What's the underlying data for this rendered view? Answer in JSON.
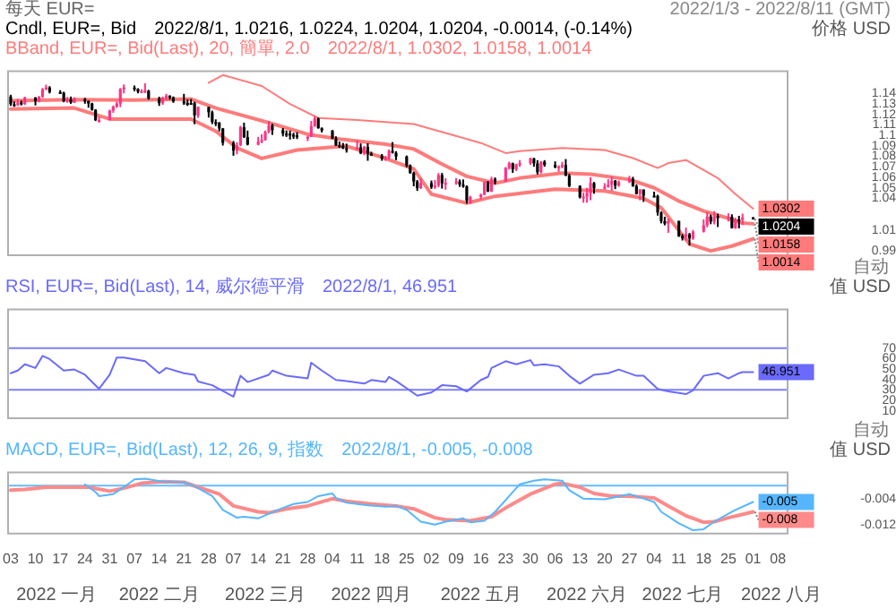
{
  "chart_data": [
    {
      "type": "candlestick",
      "title": "每天 EUR=",
      "subtitle": "2022/1/3 - 2022/8/11 (GMT)",
      "ylabel": "价格 USD",
      "annotations": [
        "Cndl, EUR=, Bid",
        "2022/8/1, 1.0216, 1.0224, 1.0204, 1.0204, -0.0014, (-0.14%)",
        "BBand, EUR=, Bid(Last), 20, 簡單, 2.0",
        "2022/8/1, 1.0302, 1.0158, 1.0014",
        "自动",
        {
          "text": "1.0302",
          "x": "2022-08-01",
          "y": 1.0302
        },
        {
          "text": "1.0204",
          "x": "2022-08-01",
          "y": 1.0204
        },
        {
          "text": "1.0158",
          "x": "2022-08-01",
          "y": 1.0158
        },
        {
          "text": "1.0014",
          "x": "2022-08-01",
          "y": 1.0014
        }
      ],
      "x": [
        "2022-01-03",
        "2022-01-04",
        "2022-01-05",
        "2022-01-06",
        "2022-01-07",
        "2022-01-10",
        "2022-01-11",
        "2022-01-12",
        "2022-01-13",
        "2022-01-14",
        "2022-01-17",
        "2022-01-18",
        "2022-01-19",
        "2022-01-20",
        "2022-01-21",
        "2022-01-24",
        "2022-01-25",
        "2022-01-26",
        "2022-01-27",
        "2022-01-28",
        "2022-01-31",
        "2022-02-01",
        "2022-02-02",
        "2022-02-03",
        "2022-02-04",
        "2022-02-07",
        "2022-02-08",
        "2022-02-09",
        "2022-02-10",
        "2022-02-11",
        "2022-02-14",
        "2022-02-15",
        "2022-02-16",
        "2022-02-17",
        "2022-02-18",
        "2022-02-21",
        "2022-02-22",
        "2022-02-23",
        "2022-02-24",
        "2022-02-25",
        "2022-02-28",
        "2022-03-01",
        "2022-03-02",
        "2022-03-03",
        "2022-03-04",
        "2022-03-07",
        "2022-03-08",
        "2022-03-09",
        "2022-03-10",
        "2022-03-11",
        "2022-03-14",
        "2022-03-15",
        "2022-03-16",
        "2022-03-17",
        "2022-03-18",
        "2022-03-21",
        "2022-03-22",
        "2022-03-23",
        "2022-03-24",
        "2022-03-25",
        "2022-03-28",
        "2022-03-29",
        "2022-03-30",
        "2022-03-31",
        "2022-04-01",
        "2022-04-04",
        "2022-04-05",
        "2022-04-06",
        "2022-04-07",
        "2022-04-08",
        "2022-04-11",
        "2022-04-12",
        "2022-04-13",
        "2022-04-14",
        "2022-04-15",
        "2022-04-18",
        "2022-04-19",
        "2022-04-20",
        "2022-04-21",
        "2022-04-22",
        "2022-04-25",
        "2022-04-26",
        "2022-04-27",
        "2022-04-28",
        "2022-04-29",
        "2022-05-02",
        "2022-05-03",
        "2022-05-04",
        "2022-05-05",
        "2022-05-06",
        "2022-05-09",
        "2022-05-10",
        "2022-05-11",
        "2022-05-12",
        "2022-05-13",
        "2022-05-16",
        "2022-05-17",
        "2022-05-18",
        "2022-05-19",
        "2022-05-20",
        "2022-05-23",
        "2022-05-24",
        "2022-05-25",
        "2022-05-26",
        "2022-05-27",
        "2022-05-30",
        "2022-05-31",
        "2022-06-01",
        "2022-06-02",
        "2022-06-03",
        "2022-06-06",
        "2022-06-07",
        "2022-06-08",
        "2022-06-09",
        "2022-06-10",
        "2022-06-13",
        "2022-06-14",
        "2022-06-15",
        "2022-06-16",
        "2022-06-17",
        "2022-06-20",
        "2022-06-21",
        "2022-06-22",
        "2022-06-23",
        "2022-06-24",
        "2022-06-27",
        "2022-06-28",
        "2022-06-29",
        "2022-06-30",
        "2022-07-01",
        "2022-07-04",
        "2022-07-05",
        "2022-07-06",
        "2022-07-07",
        "2022-07-08",
        "2022-07-11",
        "2022-07-12",
        "2022-07-13",
        "2022-07-14",
        "2022-07-15",
        "2022-07-18",
        "2022-07-19",
        "2022-07-20",
        "2022-07-21",
        "2022-07-22",
        "2022-07-25",
        "2022-07-26",
        "2022-07-27",
        "2022-07-28",
        "2022-07-29",
        "2022-08-01"
      ],
      "ohlc": [
        [
          1.137,
          1.1386,
          1.128,
          1.1296
        ],
        [
          1.1296,
          1.1322,
          1.1272,
          1.1287
        ],
        [
          1.1287,
          1.1346,
          1.128,
          1.1312
        ],
        [
          1.1312,
          1.133,
          1.1285,
          1.1296
        ],
        [
          1.1296,
          1.1368,
          1.129,
          1.136
        ],
        [
          1.136,
          1.1364,
          1.1285,
          1.1325
        ],
        [
          1.1325,
          1.1374,
          1.1314,
          1.1368
        ],
        [
          1.1368,
          1.145,
          1.1356,
          1.144
        ],
        [
          1.144,
          1.1482,
          1.143,
          1.1456
        ],
        [
          1.1456,
          1.1468,
          1.1399,
          1.1412
        ],
        [
          1.1412,
          1.143,
          1.1395,
          1.1406
        ],
        [
          1.1406,
          1.1415,
          1.1315,
          1.1326
        ],
        [
          1.1326,
          1.1364,
          1.131,
          1.1343
        ],
        [
          1.1343,
          1.1369,
          1.13,
          1.1312
        ],
        [
          1.1312,
          1.1362,
          1.1308,
          1.1344
        ],
        [
          1.1344,
          1.1357,
          1.1301,
          1.1326
        ],
        [
          1.1326,
          1.1332,
          1.1263,
          1.1303
        ],
        [
          1.1303,
          1.131,
          1.1235,
          1.1243
        ],
        [
          1.1243,
          1.1249,
          1.1136,
          1.1144
        ],
        [
          1.1144,
          1.1174,
          1.1121,
          1.1146
        ],
        [
          1.1146,
          1.1245,
          1.1142,
          1.1235
        ],
        [
          1.1235,
          1.1284,
          1.1215,
          1.1272
        ],
        [
          1.1272,
          1.1319,
          1.1262,
          1.1302
        ],
        [
          1.1302,
          1.145,
          1.1268,
          1.1441
        ],
        [
          1.1441,
          1.1484,
          1.14,
          1.1455
        ],
        [
          1.1455,
          1.1475,
          1.142,
          1.1442
        ],
        [
          1.1442,
          1.1448,
          1.14,
          1.1415
        ],
        [
          1.1415,
          1.1438,
          1.1401,
          1.1422
        ],
        [
          1.1422,
          1.1495,
          1.1403,
          1.1425
        ],
        [
          1.1425,
          1.1433,
          1.134,
          1.135
        ],
        [
          1.135,
          1.1368,
          1.128,
          1.1306
        ],
        [
          1.1306,
          1.1368,
          1.129,
          1.1358
        ],
        [
          1.1358,
          1.1395,
          1.1335,
          1.1377
        ],
        [
          1.1377,
          1.1382,
          1.134,
          1.1362
        ],
        [
          1.1362,
          1.137,
          1.131,
          1.1322
        ],
        [
          1.1322,
          1.1395,
          1.129,
          1.1308
        ],
        [
          1.1308,
          1.1343,
          1.128,
          1.1307
        ],
        [
          1.1307,
          1.1346,
          1.1297,
          1.1307
        ],
        [
          1.1307,
          1.132,
          1.1106,
          1.119
        ],
        [
          1.119,
          1.1275,
          1.1167,
          1.127
        ],
        [
          1.127,
          1.1272,
          1.1169,
          1.1219
        ],
        [
          1.1219,
          1.1235,
          1.1107,
          1.1126
        ],
        [
          1.1126,
          1.1152,
          1.1088,
          1.1123
        ],
        [
          1.1123,
          1.1125,
          1.1038,
          1.1065
        ],
        [
          1.1065,
          1.107,
          1.0903,
          1.0929
        ],
        [
          1.0929,
          1.0946,
          1.0806,
          1.0855
        ],
        [
          1.0855,
          1.0935,
          1.082,
          1.0905
        ],
        [
          1.0905,
          1.109,
          1.0898,
          1.1077
        ],
        [
          1.1077,
          1.1121,
          1.0975,
          1.0983
        ],
        [
          1.0983,
          1.1045,
          1.0905,
          1.0912
        ],
        [
          1.0912,
          1.0985,
          1.0905,
          1.094
        ],
        [
          1.094,
          1.101,
          1.0925,
          1.0954
        ],
        [
          1.0954,
          1.1045,
          1.095,
          1.1033
        ],
        [
          1.1033,
          1.1137,
          1.102,
          1.1094
        ],
        [
          1.1094,
          1.111,
          1.1004,
          1.1049
        ],
        [
          1.1049,
          1.107,
          1.099,
          1.1017
        ],
        [
          1.1017,
          1.1046,
          1.0985,
          1.1015
        ],
        [
          1.1015,
          1.1045,
          1.096,
          1.1005
        ],
        [
          1.1005,
          1.1025,
          1.0966,
          1.0999
        ],
        [
          1.0999,
          1.103,
          1.0965,
          1.0983
        ],
        [
          1.0983,
          1.0998,
          1.0945,
          1.0986
        ],
        [
          1.0986,
          1.1137,
          1.0985,
          1.1088
        ],
        [
          1.1088,
          1.1185,
          1.108,
          1.116
        ],
        [
          1.116,
          1.117,
          1.1064,
          1.1067
        ],
        [
          1.1067,
          1.1076,
          1.1027,
          1.1046
        ],
        [
          1.1046,
          1.105,
          1.0965,
          1.0971
        ],
        [
          1.0971,
          1.099,
          1.09,
          1.0904
        ],
        [
          1.0904,
          1.094,
          1.088,
          1.0901
        ],
        [
          1.0901,
          1.0928,
          1.0869,
          1.0877
        ],
        [
          1.0877,
          1.0921,
          1.0836,
          1.0876
        ],
        [
          1.0876,
          1.0954,
          1.0864,
          1.0886
        ],
        [
          1.0886,
          1.0923,
          1.0821,
          1.0829
        ],
        [
          1.0829,
          1.09,
          1.0811,
          1.089
        ],
        [
          1.089,
          1.0925,
          1.0758,
          1.0826
        ],
        [
          1.0826,
          1.0844,
          1.0804,
          1.0808
        ],
        [
          1.0808,
          1.0822,
          1.0758,
          1.078
        ],
        [
          1.078,
          1.0805,
          1.0757,
          1.0788
        ],
        [
          1.0788,
          1.0866,
          1.077,
          1.0851
        ],
        [
          1.0851,
          1.0936,
          1.0827,
          1.0834
        ],
        [
          1.0834,
          1.0849,
          1.0764,
          1.0798
        ],
        [
          1.0798,
          1.0808,
          1.0696,
          1.0713
        ],
        [
          1.0713,
          1.0723,
          1.0636,
          1.064
        ],
        [
          1.064,
          1.0653,
          1.0515,
          1.056
        ],
        [
          1.056,
          1.0575,
          1.0471,
          1.0497
        ],
        [
          1.0497,
          1.059,
          1.049,
          1.0545
        ],
        [
          1.0545,
          1.057,
          1.049,
          1.0506
        ],
        [
          1.0506,
          1.0575,
          1.049,
          1.0523
        ],
        [
          1.0523,
          1.0641,
          1.0505,
          1.0621
        ],
        [
          1.0621,
          1.0642,
          1.0493,
          1.0543
        ],
        [
          1.0543,
          1.0592,
          1.0483,
          1.0548
        ],
        [
          1.0548,
          1.0594,
          1.053,
          1.0561
        ],
        [
          1.0561,
          1.058,
          1.0509,
          1.053
        ],
        [
          1.053,
          1.058,
          1.0502,
          1.0514
        ],
        [
          1.0514,
          1.0523,
          1.035,
          1.0379
        ],
        [
          1.0379,
          1.0424,
          1.0348,
          1.0413
        ],
        [
          1.0413,
          1.0445,
          1.0389,
          1.0436
        ],
        [
          1.0436,
          1.0564,
          1.043,
          1.0553
        ],
        [
          1.0553,
          1.0564,
          1.046,
          1.0465
        ],
        [
          1.0465,
          1.0606,
          1.0461,
          1.0586
        ],
        [
          1.0586,
          1.0599,
          1.0532,
          1.056
        ],
        [
          1.056,
          1.0698,
          1.0556,
          1.069
        ],
        [
          1.069,
          1.0748,
          1.0673,
          1.0734
        ],
        [
          1.0734,
          1.074,
          1.0643,
          1.0678
        ],
        [
          1.0678,
          1.073,
          1.066,
          1.0723
        ],
        [
          1.0723,
          1.0765,
          1.07,
          1.0735
        ],
        [
          1.0735,
          1.0787,
          1.0719,
          1.078
        ],
        [
          1.078,
          1.0786,
          1.0701,
          1.0733
        ],
        [
          1.0733,
          1.0764,
          1.0627,
          1.0648
        ],
        [
          1.0648,
          1.0755,
          1.0637,
          1.0749
        ],
        [
          1.0749,
          1.0764,
          1.0701,
          1.0718
        ],
        [
          1.0718,
          1.0752,
          1.0687,
          1.0695
        ],
        [
          1.0695,
          1.0714,
          1.0653,
          1.0705
        ],
        [
          1.0705,
          1.0748,
          1.0686,
          1.0717
        ],
        [
          1.0717,
          1.0774,
          1.0612,
          1.0616
        ],
        [
          1.0616,
          1.0634,
          1.0507,
          1.0519
        ],
        [
          1.0519,
          1.0524,
          1.0399,
          1.041
        ],
        [
          1.041,
          1.0454,
          1.0358,
          1.0416
        ],
        [
          1.0416,
          1.05,
          1.0359,
          1.045
        ],
        [
          1.045,
          1.0601,
          1.0382,
          1.0546
        ],
        [
          1.0546,
          1.0556,
          1.0444,
          1.0495
        ],
        [
          1.0495,
          1.0545,
          1.0483,
          1.051
        ],
        [
          1.051,
          1.0582,
          1.0502,
          1.053
        ],
        [
          1.053,
          1.0606,
          1.047,
          1.0568
        ],
        [
          1.0568,
          1.0575,
          1.0488,
          1.0522
        ],
        [
          1.0522,
          1.0571,
          1.051,
          1.0555
        ],
        [
          1.0555,
          1.0614,
          1.0546,
          1.0585
        ],
        [
          1.0585,
          1.0605,
          1.051,
          1.0517
        ],
        [
          1.0517,
          1.0534,
          1.0437,
          1.0442
        ],
        [
          1.0442,
          1.0488,
          1.0382,
          1.0484
        ],
        [
          1.0484,
          1.0485,
          1.0366,
          1.0425
        ],
        [
          1.0425,
          1.0464,
          1.041,
          1.0424
        ],
        [
          1.0424,
          1.0434,
          1.0236,
          1.0265
        ],
        [
          1.0265,
          1.0275,
          1.0162,
          1.0183
        ],
        [
          1.0183,
          1.0225,
          1.0143,
          1.016
        ],
        [
          1.016,
          1.0208,
          1.0072,
          1.0185
        ],
        [
          1.0185,
          1.0187,
          1.0033,
          1.0039
        ],
        [
          1.0039,
          1.006,
          0.9999,
          1.0037
        ],
        [
          1.0037,
          1.0122,
          0.9998,
          1.0058
        ],
        [
          1.0058,
          1.0071,
          0.9952,
          1.0018
        ],
        [
          1.0018,
          1.0099,
          1.0005,
          1.0083
        ],
        [
          1.0083,
          1.02,
          1.0075,
          1.0144
        ],
        [
          1.0144,
          1.0269,
          1.0125,
          1.0227
        ],
        [
          1.0227,
          1.0245,
          1.0154,
          1.0178
        ],
        [
          1.0178,
          1.0278,
          1.0152,
          1.023
        ],
        [
          1.023,
          1.0254,
          1.0127,
          1.0212
        ],
        [
          1.0212,
          1.0258,
          1.018,
          1.0225
        ],
        [
          1.0225,
          1.0248,
          1.0113,
          1.0117
        ],
        [
          1.0117,
          1.0215,
          1.011,
          1.02
        ],
        [
          1.02,
          1.0234,
          1.0114,
          1.0197
        ],
        [
          1.0197,
          1.0254,
          1.0146,
          1.0218
        ],
        [
          1.0216,
          1.0224,
          1.0204,
          1.0204
        ]
      ],
      "colors": [
        "#000000",
        "#000000",
        "#ff3385",
        "#000000",
        "#ff3385",
        "#000000",
        "#ff3385",
        "#ff3385",
        "#ff3385",
        "#000000",
        "#000000",
        "#000000",
        "#ff3385",
        "#000000",
        "#ff3385",
        "#000000",
        "#000000",
        "#000000",
        "#000000",
        "#ff3385",
        "#ff3385",
        "#ff3385",
        "#ff3385",
        "#ff3385",
        "#ff3385",
        "#000000",
        "#000000",
        "#ff3385",
        "#ff3385",
        "#000000",
        "#000000",
        "#ff3385",
        "#ff3385",
        "#000000",
        "#000000",
        "#000000",
        "#000000",
        "#000000",
        "#000000",
        "#ff3385",
        "#000000",
        "#000000",
        "#000000",
        "#000000",
        "#000000",
        "#000000",
        "#ff3385",
        "#ff3385",
        "#000000",
        "#000000",
        "#ff3385",
        "#ff3385",
        "#ff3385",
        "#ff3385",
        "#000000",
        "#000000",
        "#000000",
        "#000000",
        "#000000",
        "#000000",
        "#ff3385",
        "#ff3385",
        "#ff3385",
        "#000000",
        "#000000",
        "#000000",
        "#000000",
        "#000000",
        "#000000",
        "#000000",
        "#ff3385",
        "#000000",
        "#ff3385",
        "#000000",
        "#000000",
        "#000000",
        "#ff3385",
        "#ff3385",
        "#000000",
        "#000000",
        "#000000",
        "#000000",
        "#000000",
        "#000000",
        "#ff3385",
        "#000000",
        "#ff3385",
        "#ff3385",
        "#000000",
        "#ff3385",
        "#ff3385",
        "#000000",
        "#000000",
        "#000000",
        "#ff3385",
        "#ff3385",
        "#ff3385",
        "#000000",
        "#ff3385",
        "#000000",
        "#ff3385",
        "#ff3385",
        "#000000",
        "#ff3385",
        "#ff3385",
        "#ff3385",
        "#000000",
        "#000000",
        "#ff3385",
        "#000000",
        "#000000",
        "#ff3385",
        "#ff3385",
        "#000000",
        "#000000",
        "#000000",
        "#ff3385",
        "#ff3385",
        "#ff3385",
        "#000000",
        "#ff3385",
        "#ff3385",
        "#ff3385",
        "#000000",
        "#ff3385",
        "#ff3385",
        "#000000",
        "#000000",
        "#ff3385",
        "#000000",
        "#000000",
        "#000000",
        "#000000",
        "#000000",
        "#ff3385",
        "#000000",
        "#000000",
        "#ff3385",
        "#000000",
        "#ff3385",
        "#ff3385",
        "#ff3385",
        "#000000",
        "#ff3385",
        "#000000",
        "#ff3385",
        "#000000",
        "#ff3385",
        "#000000",
        "#ff3385",
        "#000000"
      ],
      "series": [
        {
          "type": "line",
          "color": "#ff7b7b",
          "x": [
            "2022-02-28",
            "2022-03-04",
            "2022-03-15",
            "2022-03-23",
            "2022-03-31",
            "2022-04-11",
            "2022-04-27",
            "2022-05-06",
            "2022-05-16",
            "2022-05-23",
            "2022-05-27",
            "2022-06-08",
            "2022-06-20",
            "2022-06-28",
            "2022-07-05",
            "2022-07-08",
            "2022-07-13",
            "2022-07-15",
            "2022-07-22",
            "2022-07-27",
            "2022-08-01"
          ],
          "values": [
            1.15,
            1.1574,
            1.147,
            1.1298,
            1.1165,
            1.1146,
            1.1108,
            1.1022,
            1.0927,
            1.0831,
            1.085,
            1.0879,
            1.086,
            1.0784,
            1.0689,
            1.0736,
            1.0765,
            1.0727,
            1.0593,
            1.044,
            1.0302
          ]
        },
        {
          "type": "line",
          "color": "#ff7b7b",
          "x": [
            "2022-01-03",
            "2022-01-21",
            "2022-02-07",
            "2022-02-23",
            "2022-03-02",
            "2022-03-17",
            "2022-03-28",
            "2022-04-06",
            "2022-04-19",
            "2022-04-27",
            "2022-05-05",
            "2022-05-12",
            "2022-05-20",
            "2022-05-27",
            "2022-06-08",
            "2022-06-16",
            "2022-06-27",
            "2022-07-04",
            "2022-07-11",
            "2022-07-18",
            "2022-07-25",
            "2022-07-29",
            "2022-08-01"
          ],
          "values": [
            1.133,
            1.134,
            1.1335,
            1.1346,
            1.126,
            1.112,
            1.101,
            1.0965,
            1.0916,
            1.087,
            1.0726,
            1.061,
            1.0545,
            1.0593,
            1.064,
            1.063,
            1.058,
            1.05,
            1.0374,
            1.028,
            1.021,
            1.0165,
            1.0158
          ]
        },
        {
          "type": "line",
          "color": "#ff7b7b",
          "x": [
            "2022-01-03",
            "2022-01-21",
            "2022-01-31",
            "2022-02-23",
            "2022-03-02",
            "2022-03-08",
            "2022-03-15",
            "2022-03-25",
            "2022-04-08",
            "2022-04-19",
            "2022-04-27",
            "2022-05-02",
            "2022-05-12",
            "2022-05-20",
            "2022-06-06",
            "2022-06-20",
            "2022-07-01",
            "2022-07-06",
            "2022-07-14",
            "2022-07-20",
            "2022-07-26",
            "2022-08-01"
          ],
          "values": [
            1.125,
            1.126,
            1.1155,
            1.1155,
            1.104,
            1.088,
            1.078,
            1.086,
            1.0898,
            1.078,
            1.068,
            1.044,
            1.0355,
            1.042,
            1.0488,
            1.047,
            1.04,
            1.031,
            0.9965,
            0.99,
            0.9946,
            1.0014
          ]
        }
      ],
      "xlim": [
        "2022-01-02",
        "2022-08-11"
      ],
      "ylim": [
        0.985,
        1.162
      ],
      "yticks": [
        0.99,
        1.01,
        1.04,
        1.05,
        1.06,
        1.07,
        1.08,
        1.09,
        1.1,
        1.11,
        1.12,
        1.13,
        1.14
      ],
      "tick_labels": "y"
    },
    {
      "type": "line",
      "ylabel": "值 USD",
      "annotations": [
        "RSI, EUR=, Bid(Last), 14, 威尔德平滑",
        "2022/8/1, 46.951",
        "自动",
        {
          "text": "46.951",
          "x": "2022-08-01",
          "y": 46.951
        }
      ],
      "series": [
        {
          "color": "#6a6aff",
          "x": [
            "2022-01-03",
            "2022-01-05",
            "2022-01-07",
            "2022-01-10",
            "2022-01-12",
            "2022-01-14",
            "2022-01-18",
            "2022-01-21",
            "2022-01-24",
            "2022-01-28",
            "2022-01-31",
            "2022-02-02",
            "2022-02-04",
            "2022-02-10",
            "2022-02-14",
            "2022-02-16",
            "2022-02-21",
            "2022-02-24",
            "2022-02-25",
            "2022-03-01",
            "2022-03-07",
            "2022-03-09",
            "2022-03-11",
            "2022-03-17",
            "2022-03-18",
            "2022-03-22",
            "2022-03-28",
            "2022-03-29",
            "2022-04-01",
            "2022-04-05",
            "2022-04-08",
            "2022-04-13",
            "2022-04-15",
            "2022-04-19",
            "2022-04-20",
            "2022-04-22",
            "2022-04-28",
            "2022-05-02",
            "2022-05-05",
            "2022-05-09",
            "2022-05-12",
            "2022-05-16",
            "2022-05-18",
            "2022-05-19",
            "2022-05-23",
            "2022-05-26",
            "2022-05-30",
            "2022-05-31",
            "2022-06-03",
            "2022-06-07",
            "2022-06-10",
            "2022-06-13",
            "2022-06-17",
            "2022-06-21",
            "2022-06-24",
            "2022-06-29",
            "2022-07-01",
            "2022-07-05",
            "2022-07-08",
            "2022-07-13",
            "2022-07-15",
            "2022-07-18",
            "2022-07-22",
            "2022-07-25",
            "2022-07-28",
            "2022-07-29",
            "2022-08-01"
          ],
          "values": [
            46,
            48.5,
            54.5,
            51,
            62.5,
            59.5,
            48.5,
            49.5,
            44.5,
            31,
            44.5,
            61,
            61,
            57.5,
            46,
            51,
            46,
            44.5,
            38,
            34.5,
            23.5,
            43.5,
            37.5,
            44.5,
            48.5,
            43.5,
            41,
            56,
            48.5,
            39.5,
            38.5,
            36,
            39.5,
            37.5,
            42.5,
            38.5,
            24.5,
            27.5,
            34.5,
            33.5,
            28.5,
            39.5,
            42.5,
            51,
            57.5,
            54.5,
            58.5,
            53.5,
            54.5,
            52.5,
            43.5,
            36,
            44.5,
            46,
            49.5,
            43.5,
            43.5,
            31,
            28.5,
            26,
            29.5,
            43.5,
            46,
            41,
            46,
            47,
            46.951
          ]
        }
      ],
      "ref_lines": [
        {
          "axis": "y",
          "value": 70,
          "color": "#7f7fff"
        },
        {
          "axis": "y",
          "value": 30,
          "color": "#7f7fff"
        }
      ],
      "xlim": [
        "2022-01-02",
        "2022-08-11"
      ],
      "ylim": [
        2,
        108
      ],
      "yticks": [
        10,
        20,
        30,
        40,
        50,
        60,
        70
      ],
      "tick_labels": "y"
    },
    {
      "type": "line",
      "ylabel": "值 USD",
      "annotations": [
        "MACD, EUR=, Bid(Last), 12, 26, 9, 指数",
        "2022/8/1, -0.005, -0.008",
        {
          "text": "-0.005",
          "x": "2022-08-01",
          "y": -0.005
        },
        {
          "text": "-0.008",
          "x": "2022-08-01",
          "y": -0.008
        }
      ],
      "series": [
        {
          "color": "#55b6ff",
          "x": [
            "2022-01-24",
            "2022-01-27",
            "2022-01-28",
            "2022-02-01",
            "2022-02-04",
            "2022-02-07",
            "2022-02-10",
            "2022-02-15",
            "2022-02-21",
            "2022-02-24",
            "2022-03-01",
            "2022-03-04",
            "2022-03-08",
            "2022-03-10",
            "2022-03-14",
            "2022-03-17",
            "2022-03-21",
            "2022-03-24",
            "2022-03-28",
            "2022-03-31",
            "2022-04-04",
            "2022-04-05",
            "2022-04-08",
            "2022-04-14",
            "2022-04-19",
            "2022-04-22",
            "2022-04-25",
            "2022-04-29",
            "2022-05-03",
            "2022-05-06",
            "2022-05-11",
            "2022-05-13",
            "2022-05-17",
            "2022-05-20",
            "2022-05-23",
            "2022-05-27",
            "2022-05-31",
            "2022-06-03",
            "2022-06-08",
            "2022-06-10",
            "2022-06-14",
            "2022-06-20",
            "2022-06-22",
            "2022-06-27",
            "2022-06-30",
            "2022-07-04",
            "2022-07-06",
            "2022-07-11",
            "2022-07-15",
            "2022-07-18",
            "2022-07-21",
            "2022-07-25",
            "2022-07-27",
            "2022-08-01"
          ],
          "values": [
            0.0004,
            -0.002,
            -0.0032,
            -0.0026,
            -0.0005,
            0.0019,
            0.0021,
            0.0012,
            0.001,
            -0.0002,
            -0.0032,
            -0.0074,
            -0.0098,
            -0.0095,
            -0.01,
            -0.0086,
            -0.0068,
            -0.0056,
            -0.005,
            -0.0032,
            -0.0024,
            -0.0038,
            -0.0052,
            -0.006,
            -0.0064,
            -0.0062,
            -0.0074,
            -0.011,
            -0.0119,
            -0.011,
            -0.01,
            -0.0112,
            -0.0107,
            -0.008,
            -0.0044,
            0.0004,
            0.0015,
            0.0019,
            0.0015,
            -0.0014,
            -0.004,
            -0.0042,
            -0.0038,
            -0.0026,
            -0.0036,
            -0.005,
            -0.008,
            -0.0115,
            -0.0136,
            -0.0133,
            -0.011,
            -0.0086,
            -0.0074,
            -0.005
          ]
        },
        {
          "color": "#ff8a8a",
          "x": [
            "2022-01-03",
            "2022-01-07",
            "2022-01-13",
            "2022-01-25",
            "2022-01-31",
            "2022-02-04",
            "2022-02-09",
            "2022-02-15",
            "2022-02-21",
            "2022-02-25",
            "2022-03-03",
            "2022-03-07",
            "2022-03-14",
            "2022-03-17",
            "2022-03-22",
            "2022-03-28",
            "2022-04-04",
            "2022-04-08",
            "2022-04-15",
            "2022-04-22",
            "2022-04-27",
            "2022-05-03",
            "2022-05-06",
            "2022-05-13",
            "2022-05-19",
            "2022-05-23",
            "2022-05-30",
            "2022-06-06",
            "2022-06-08",
            "2022-06-13",
            "2022-06-17",
            "2022-06-22",
            "2022-06-27",
            "2022-07-04",
            "2022-07-08",
            "2022-07-13",
            "2022-07-18",
            "2022-07-21",
            "2022-07-25",
            "2022-08-01"
          ],
          "values": [
            -0.0014,
            -0.0012,
            -0.0005,
            -0.0005,
            -0.0017,
            -0.0008,
            0.0007,
            0.0012,
            0.001,
            -0.0005,
            -0.0026,
            -0.0062,
            -0.008,
            -0.0083,
            -0.0071,
            -0.0062,
            -0.004,
            -0.0048,
            -0.0056,
            -0.0062,
            -0.0071,
            -0.0098,
            -0.0104,
            -0.0107,
            -0.0095,
            -0.0068,
            -0.0026,
            0.0004,
            0.0007,
            -0.0005,
            -0.0024,
            -0.0032,
            -0.0032,
            -0.0038,
            -0.0062,
            -0.0092,
            -0.0112,
            -0.011,
            -0.0098,
            -0.008
          ]
        }
      ],
      "ref_lines": [
        {
          "axis": "y",
          "value": 0,
          "color": "#66bbff"
        }
      ],
      "xlim": [
        "2022-01-02",
        "2022-08-11"
      ],
      "xticks": [
        {
          "value": "2022-01-03",
          "label": "03"
        },
        {
          "value": "2022-01-10",
          "label": "10"
        },
        {
          "value": "2022-01-17",
          "label": "17"
        },
        {
          "value": "2022-01-24",
          "label": "24"
        },
        {
          "value": "2022-01-31",
          "label": "31"
        },
        {
          "value": "2022-02-07",
          "label": "07"
        },
        {
          "value": "2022-02-14",
          "label": "14"
        },
        {
          "value": "2022-02-21",
          "label": "21"
        },
        {
          "value": "2022-02-28",
          "label": "28"
        },
        {
          "value": "2022-03-07",
          "label": "07"
        },
        {
          "value": "2022-03-14",
          "label": "14"
        },
        {
          "value": "2022-03-21",
          "label": "21"
        },
        {
          "value": "2022-03-28",
          "label": "28"
        },
        {
          "value": "2022-04-04",
          "label": "04"
        },
        {
          "value": "2022-04-11",
          "label": "11"
        },
        {
          "value": "2022-04-18",
          "label": "18"
        },
        {
          "value": "2022-04-25",
          "label": "25"
        },
        {
          "value": "2022-05-02",
          "label": "02"
        },
        {
          "value": "2022-05-09",
          "label": "09"
        },
        {
          "value": "2022-05-16",
          "label": "16"
        },
        {
          "value": "2022-05-23",
          "label": "23"
        },
        {
          "value": "2022-05-30",
          "label": "30"
        },
        {
          "value": "2022-06-06",
          "label": "06"
        },
        {
          "value": "2022-06-13",
          "label": "13"
        },
        {
          "value": "2022-06-20",
          "label": "20"
        },
        {
          "value": "2022-06-27",
          "label": "27"
        },
        {
          "value": "2022-07-04",
          "label": "04"
        },
        {
          "value": "2022-07-11",
          "label": "11"
        },
        {
          "value": "2022-07-18",
          "label": "18"
        },
        {
          "value": "2022-07-25",
          "label": "25"
        },
        {
          "value": "2022-08-01",
          "label": "01"
        },
        {
          "value": "2022-08-08",
          "label": "08"
        }
      ],
      "x2lim": [
        "2022-01-02",
        "2022-08-11"
      ],
      "x2ticks": [
        {
          "value": "2022-01-16",
          "label": "2022 一月"
        },
        {
          "value": "2022-02-14",
          "label": "2022 二月"
        },
        {
          "value": "2022-03-16",
          "label": "2022 三月"
        },
        {
          "value": "2022-04-15",
          "label": "2022 四月"
        },
        {
          "value": "2022-05-16",
          "label": "2022 五月"
        },
        {
          "value": "2022-06-15",
          "label": "2022 六月"
        },
        {
          "value": "2022-07-12",
          "label": "2022 七月"
        },
        {
          "value": "2022-08-09",
          "label": "2022 八月"
        }
      ],
      "ylim": [
        -0.0149,
        0.0043
      ],
      "yticks": [
        -0.012,
        -0.004
      ]
    }
  ]
}
